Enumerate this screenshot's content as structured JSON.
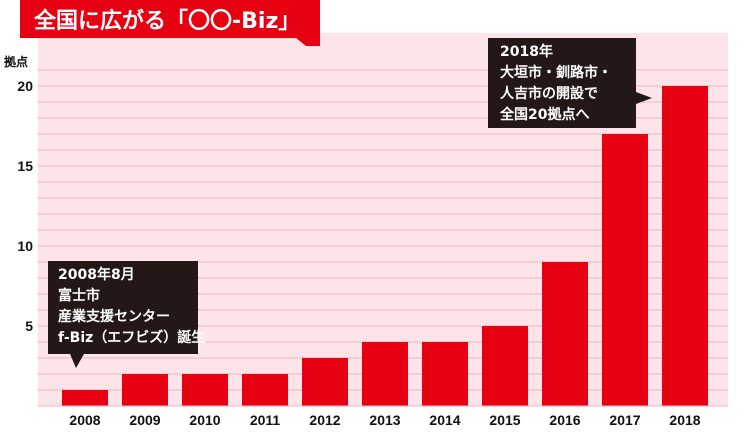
{
  "colors": {
    "plot_background": "#fde4e8",
    "grid_line": "#f4b3bf",
    "bar": "#e60012",
    "title_background": "#e60012",
    "callout_background": "#231815",
    "text": "#111111"
  },
  "chart_data": {
    "type": "bar",
    "title": "全国に広がる「〇〇-Biz」",
    "ylabel": "拠点",
    "xlabel": "",
    "ylim": [
      0,
      21
    ],
    "yticks": [
      5,
      10,
      15,
      20
    ],
    "grid": true,
    "categories": [
      "2008",
      "2009",
      "2010",
      "2011",
      "2012",
      "2013",
      "2014",
      "2015",
      "2016",
      "2017",
      "2018"
    ],
    "values": [
      1,
      2,
      2,
      2,
      3,
      4,
      4,
      5,
      9,
      17,
      20
    ],
    "annotations": [
      {
        "target": "2008",
        "lines": [
          "2008年8月",
          "富士市",
          "産業支援センター",
          "f-Biz（エフビズ）誕生"
        ]
      },
      {
        "target": "2018",
        "lines": [
          "2018年",
          "大垣市・釧路市・",
          "人吉市の開設で",
          "全国20拠点へ"
        ]
      }
    ]
  }
}
